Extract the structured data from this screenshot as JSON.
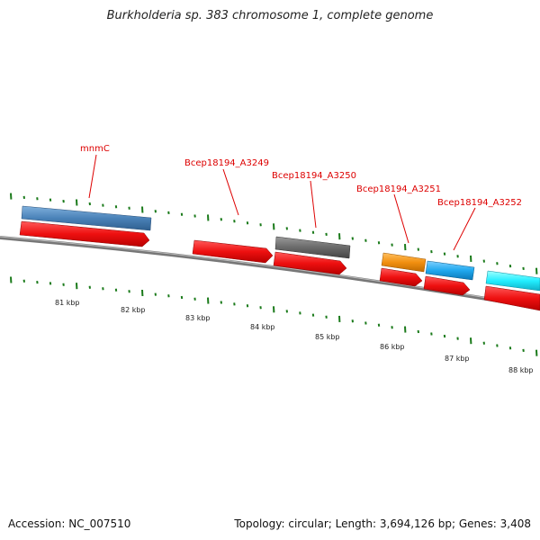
{
  "title": "Burkholderia sp. 383 chromosome 1, complete genome",
  "footer": {
    "accession": "Accession: NC_007510",
    "summary": "Topology: circular; Length: 3,694,126 bp; Genes: 3,408"
  },
  "colors": {
    "backbone": "#8a8a8a",
    "tick": "#1a7a1a",
    "gene_label": "#dd0000",
    "cds": "#ee1111",
    "blue_feature": "#4682b4",
    "gray_feature": "#6b6b6b",
    "orange_feature": "#f0900a",
    "skyblue_feature": "#22aaee",
    "cyan_feature": "#22eeff"
  },
  "gene_labels": [
    {
      "id": "mnmC",
      "text": "mnmC"
    },
    {
      "id": "A3249",
      "text": "Bcep18194_A3249"
    },
    {
      "id": "A3250",
      "text": "Bcep18194_A3250"
    },
    {
      "id": "A3251",
      "text": "Bcep18194_A3251"
    },
    {
      "id": "A3252",
      "text": "Bcep18194_A3252"
    }
  ],
  "scale_labels": [
    "81 kbp",
    "82 kbp",
    "83 kbp",
    "84 kbp",
    "85 kbp",
    "86 kbp",
    "87 kbp",
    "88 kbp"
  ]
}
